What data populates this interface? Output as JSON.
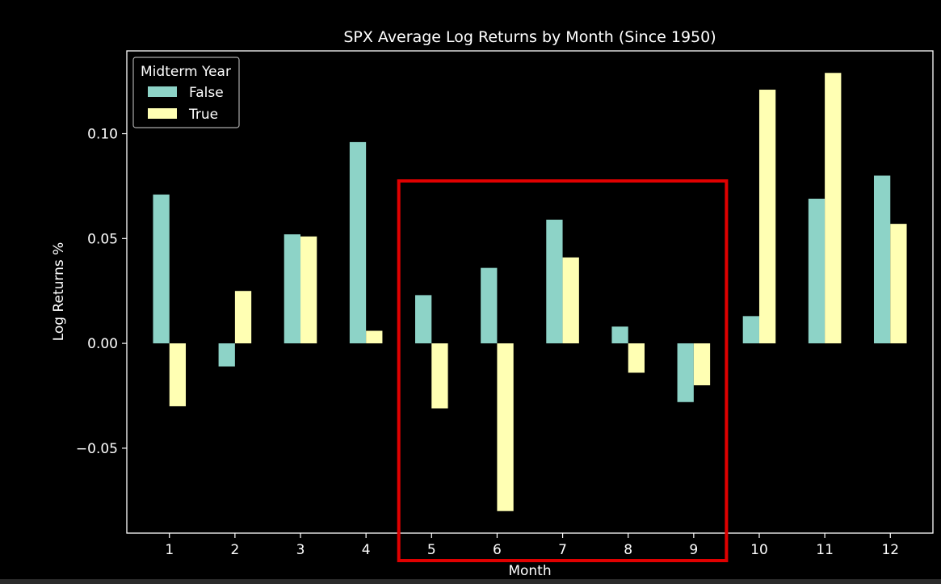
{
  "chart_data": {
    "type": "bar",
    "title": "SPX Average Log Returns by Month (Since 1950)",
    "xlabel": "Month",
    "ylabel": "Log Returns %",
    "categories": [
      "1",
      "2",
      "3",
      "4",
      "5",
      "6",
      "7",
      "8",
      "9",
      "10",
      "11",
      "12"
    ],
    "series": [
      {
        "name": "False",
        "color": "#8dd3c7",
        "values": [
          0.071,
          -0.011,
          0.052,
          0.096,
          0.023,
          0.036,
          0.059,
          0.008,
          -0.028,
          0.013,
          0.069,
          0.08
        ]
      },
      {
        "name": "True",
        "color": "#ffffb3",
        "values": [
          -0.03,
          0.025,
          0.051,
          0.006,
          -0.031,
          -0.08,
          0.041,
          -0.014,
          -0.02,
          0.121,
          0.129,
          0.057
        ]
      }
    ],
    "ylim": [
      -0.0905,
      0.1395
    ],
    "yticks": [
      -0.05,
      0.0,
      0.05,
      0.1
    ],
    "ytick_labels": [
      "−0.05",
      "0.00",
      "0.05",
      "0.10"
    ],
    "legend": {
      "title": "Midterm Year",
      "position": "top-left",
      "entries": [
        "False",
        "True"
      ]
    },
    "grid": false,
    "highlight": {
      "color": "#e00000",
      "x_from": "5",
      "x_to": "9"
    },
    "background": "#000000",
    "axis_color": "#ffffff"
  }
}
